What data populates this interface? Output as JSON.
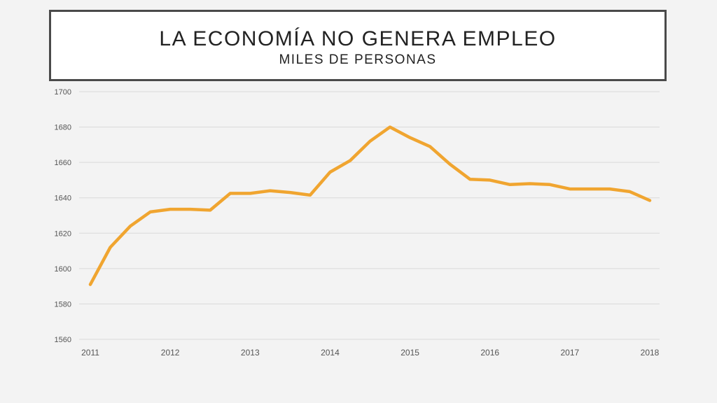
{
  "header": {
    "title": "LA ECONOMÍA NO GENERA EMPLEO",
    "subtitle": "MILES DE PERSONAS"
  },
  "chart_data": {
    "type": "line",
    "title": "LA ECONOMÍA NO GENERA EMPLEO",
    "subtitle": "MILES DE PERSONAS",
    "xlabel": "",
    "ylabel": "",
    "ylim": [
      1560,
      1700
    ],
    "yticks": [
      1560,
      1580,
      1600,
      1620,
      1640,
      1660,
      1680,
      1700
    ],
    "xtick_labels": [
      "2011",
      "2012",
      "2013",
      "2014",
      "2015",
      "2016",
      "2017",
      "2018"
    ],
    "grid": true,
    "line_color": "#f0a530",
    "series": [
      {
        "values": [
          1591,
          1612,
          1624,
          1632,
          1633.5,
          1633.5,
          1633,
          1642.5,
          1642.5,
          1644,
          1643,
          1641.5,
          1654.5,
          1661,
          1672,
          1680,
          1674,
          1669,
          1659,
          1650.5,
          1650,
          1647.5,
          1648,
          1647.5,
          1645,
          1645,
          1645,
          1643.5,
          1638.5
        ]
      }
    ]
  }
}
